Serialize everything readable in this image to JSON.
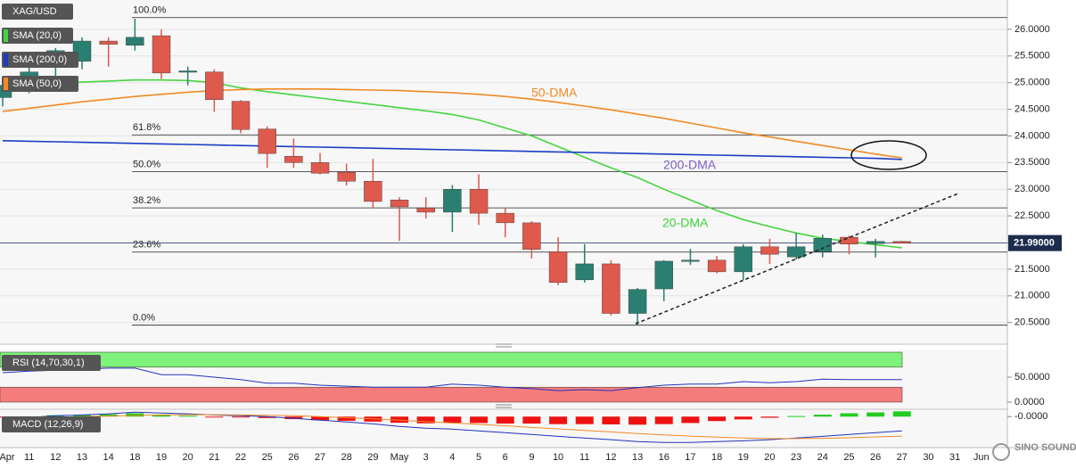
{
  "chart_data": [
    {
      "type": "candlestick",
      "categories": [
        "Apr",
        "11",
        "12",
        "13",
        "14",
        "18",
        "19",
        "20",
        "21",
        "22",
        "25",
        "26",
        "27",
        "28",
        "29",
        "May",
        "3",
        "4",
        "5",
        "6",
        "9",
        "10",
        "11",
        "12",
        "13",
        "16",
        "17",
        "18",
        "19",
        "20",
        "23",
        "24",
        "25",
        "26",
        "27",
        "30",
        "31",
        "Jun"
      ],
      "open": [
        24.72,
        25.0,
        25.3,
        25.4,
        25.78,
        25.7,
        25.88,
        25.2,
        25.2,
        24.65,
        24.13,
        23.62,
        23.5,
        23.32,
        23.15,
        22.8,
        22.65,
        22.57,
        23.0,
        22.55,
        22.37,
        21.83,
        21.3,
        21.6,
        20.67,
        21.13,
        21.65,
        21.67,
        21.45,
        21.92,
        21.73,
        21.83,
        22.1,
        21.98,
        22.02,
        null,
        null,
        null
      ],
      "high": [
        25.1,
        25.35,
        25.65,
        25.85,
        25.85,
        26.2,
        26.0,
        25.3,
        25.25,
        24.67,
        24.18,
        23.95,
        23.68,
        23.48,
        23.57,
        22.85,
        22.85,
        23.08,
        23.28,
        22.65,
        22.4,
        22.1,
        21.97,
        21.67,
        21.15,
        21.67,
        21.88,
        21.75,
        21.97,
        22.07,
        22.18,
        22.15,
        22.13,
        22.07,
        22.03,
        null,
        null,
        null
      ],
      "low": [
        24.55,
        24.8,
        25.05,
        25.25,
        25.3,
        25.6,
        25.07,
        24.95,
        24.45,
        24.05,
        23.4,
        23.4,
        23.28,
        23.07,
        22.65,
        22.03,
        22.45,
        22.2,
        22.33,
        22.1,
        21.7,
        21.2,
        21.25,
        20.63,
        20.45,
        20.9,
        21.58,
        21.42,
        21.3,
        21.6,
        21.68,
        21.72,
        21.78,
        21.72,
        21.98,
        null,
        null,
        null
      ],
      "close": [
        24.95,
        25.2,
        25.6,
        25.78,
        25.72,
        25.85,
        25.18,
        25.22,
        24.68,
        24.12,
        23.67,
        23.5,
        23.3,
        23.15,
        22.77,
        22.67,
        22.57,
        23.0,
        22.55,
        22.37,
        21.87,
        21.25,
        21.6,
        20.67,
        21.12,
        21.65,
        21.67,
        21.45,
        21.92,
        21.78,
        21.92,
        22.08,
        21.97,
        22.02,
        21.99,
        null,
        null,
        null
      ],
      "up_color": "#2a7f72",
      "down_color": "#dd5a4c",
      "symbol": "XAG/USD",
      "series": [
        {
          "name": "SMA (20,0)",
          "color": "#45d43f",
          "values": [
            24.96,
            24.97,
            24.99,
            25.01,
            25.03,
            25.05,
            25.05,
            25.04,
            25.0,
            24.9,
            24.83,
            24.77,
            24.71,
            24.65,
            24.59,
            24.53,
            24.47,
            24.4,
            24.3,
            24.15,
            24.0,
            23.8,
            23.6,
            23.4,
            23.22,
            23.0,
            22.8,
            22.6,
            22.43,
            22.3,
            22.18,
            22.08,
            22.02,
            21.96,
            21.9,
            null,
            null,
            null
          ]
        },
        {
          "name": "SMA (200,0)",
          "color": "#1c3cc4",
          "values": [
            23.91,
            23.9,
            23.89,
            23.88,
            23.87,
            23.86,
            23.85,
            23.84,
            23.83,
            23.82,
            23.81,
            23.8,
            23.79,
            23.78,
            23.77,
            23.76,
            23.75,
            23.74,
            23.73,
            23.72,
            23.71,
            23.7,
            23.69,
            23.68,
            23.67,
            23.66,
            23.65,
            23.64,
            23.63,
            23.62,
            23.61,
            23.6,
            23.59,
            23.58,
            23.56,
            null,
            null,
            null
          ]
        },
        {
          "name": "SMA (50,0)",
          "color": "#f08a24",
          "values": [
            24.46,
            24.52,
            24.58,
            24.64,
            24.69,
            24.74,
            24.78,
            24.82,
            24.85,
            24.87,
            24.88,
            24.88,
            24.88,
            24.87,
            24.86,
            24.85,
            24.83,
            24.81,
            24.78,
            24.74,
            24.69,
            24.63,
            24.56,
            24.49,
            24.41,
            24.33,
            24.24,
            24.15,
            24.06,
            23.98,
            23.9,
            23.82,
            23.74,
            23.66,
            23.59,
            null,
            null,
            null
          ]
        }
      ],
      "ylim": [
        20.11,
        26.55
      ],
      "yticks": [
        {
          "value": 20.5,
          "label": "20.5000"
        },
        {
          "value": 21.0,
          "label": "21.0000"
        },
        {
          "value": 21.5,
          "label": "21.5000"
        },
        {
          "value": 22.0,
          "label": "22.0000"
        },
        {
          "value": 22.5,
          "label": "22.5000"
        },
        {
          "value": 23.0,
          "label": "23.0000"
        },
        {
          "value": 23.5,
          "label": "23.5000"
        },
        {
          "value": 24.0,
          "label": "24.0000"
        },
        {
          "value": 24.5,
          "label": "24.5000"
        },
        {
          "value": 25.0,
          "label": "25.0000"
        },
        {
          "value": 25.5,
          "label": "25.5000"
        },
        {
          "value": 26.0,
          "label": "26.0000"
        }
      ],
      "grid": true,
      "last_price": {
        "value": 21.99,
        "label": "21.99000"
      },
      "fib_levels": [
        {
          "value": 26.22,
          "label": "100.0%"
        },
        {
          "value": 24.02,
          "label": "61.8%"
        },
        {
          "value": 23.33,
          "label": "50.0%"
        },
        {
          "value": 22.65,
          "label": "38.2%"
        },
        {
          "value": 21.82,
          "label": "23.6%"
        },
        {
          "value": 20.45,
          "label": "0.0%"
        }
      ],
      "annotations": [
        {
          "text": "50-DMA",
          "color": "#f08a24"
        },
        {
          "text": "200-DMA",
          "color": "#7b5fc7"
        },
        {
          "text": "20-DMA",
          "color": "#3bd13b"
        }
      ],
      "watermark": "SINO SOUND"
    },
    {
      "type": "line",
      "title": "RSI (14,70,30,1)",
      "color": "#2233bb",
      "values": [
        59,
        62,
        64,
        66,
        68,
        68,
        55,
        55,
        50,
        45,
        38,
        38,
        34,
        32,
        30,
        30,
        30,
        36,
        34,
        30,
        27,
        23,
        25,
        23,
        29,
        34,
        36,
        36,
        41,
        39,
        41,
        46,
        45,
        45,
        45,
        null,
        null,
        null
      ],
      "ylim": [
        0,
        100
      ],
      "yticks": [
        {
          "value": 0,
          "label": "0.0000"
        },
        {
          "value": 50,
          "label": "50.0000"
        }
      ],
      "bands": [
        {
          "range": [
            70,
            100
          ],
          "color": "#7ef27a"
        },
        {
          "range": [
            0,
            30
          ],
          "color": "#f47c7c"
        }
      ]
    },
    {
      "type": "macd",
      "title": "MACD (12,26,9)",
      "series": [
        {
          "color": "#2233bb",
          "values": [
            -0.06,
            -0.03,
            0.03,
            0.06,
            0.1,
            0.16,
            0.13,
            0.1,
            0.06,
            0.03,
            0,
            -0.06,
            -0.13,
            -0.19,
            -0.26,
            -0.35,
            -0.42,
            -0.45,
            -0.51,
            -0.58,
            -0.64,
            -0.71,
            -0.77,
            -0.83,
            -0.9,
            -0.93,
            -0.93,
            -0.9,
            -0.87,
            -0.83,
            -0.77,
            -0.71,
            -0.64,
            -0.58,
            -0.51,
            null,
            null,
            null
          ]
        },
        {
          "color": "#f08a24",
          "values": [
            -0.05,
            -0.04,
            -0.02,
            0,
            0.02,
            0.04,
            0.06,
            0.07,
            0.07,
            0.06,
            0.05,
            0.03,
            0,
            -0.04,
            -0.08,
            -0.13,
            -0.18,
            -0.23,
            -0.28,
            -0.33,
            -0.39,
            -0.44,
            -0.5,
            -0.55,
            -0.61,
            -0.66,
            -0.7,
            -0.74,
            -0.77,
            -0.79,
            -0.79,
            -0.78,
            -0.76,
            -0.73,
            -0.7,
            null,
            null,
            null
          ]
        }
      ],
      "histogram": [
        -0.01,
        0.01,
        0.05,
        0.06,
        0.08,
        0.12,
        0.07,
        0.03,
        -0.01,
        -0.03,
        -0.05,
        -0.09,
        -0.13,
        -0.15,
        -0.18,
        -0.22,
        -0.24,
        -0.22,
        -0.23,
        -0.25,
        -0.25,
        -0.27,
        -0.27,
        -0.28,
        -0.29,
        -0.27,
        -0.23,
        -0.16,
        -0.1,
        -0.04,
        0.02,
        0.07,
        0.12,
        0.15,
        0.19,
        null,
        null,
        null
      ],
      "histogram_colors": {
        "up": "#22cc22",
        "down": "#ee1111"
      },
      "ylim": [
        -1.05,
        0.2
      ],
      "yticks": [
        {
          "value": 0,
          "label": "-0.0000"
        }
      ]
    }
  ]
}
